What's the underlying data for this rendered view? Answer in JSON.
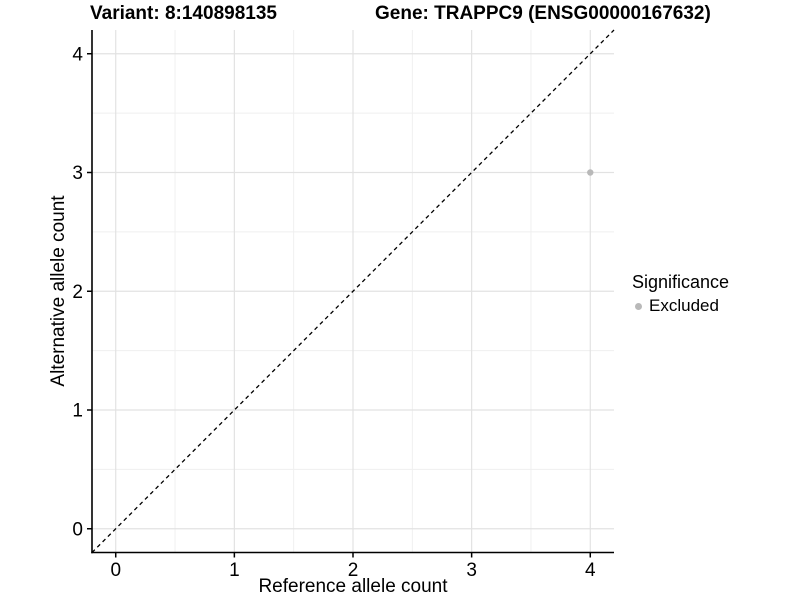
{
  "titles": {
    "variant": "Variant: 8:140898135",
    "gene": "Gene: TRAPPC9 (ENSG00000167632)"
  },
  "chart_data": {
    "type": "scatter",
    "xlabel": "Reference allele count",
    "ylabel": "Alternative allele count",
    "xlim": [
      -0.2,
      4.2
    ],
    "ylim": [
      -0.2,
      4.2
    ],
    "x_ticks": [
      0,
      1,
      2,
      3,
      4
    ],
    "y_ticks": [
      0,
      1,
      2,
      3,
      4
    ],
    "x_tick_labels": [
      "0",
      "1",
      "2",
      "3",
      "4"
    ],
    "y_tick_labels": [
      "0",
      "1",
      "2",
      "3",
      "4"
    ],
    "minor_grid_step": 0.5,
    "grid": true,
    "diagonal_line": {
      "style": "dashed",
      "from": [
        -0.2,
        -0.2
      ],
      "to": [
        4.2,
        4.2
      ],
      "color": "#000000"
    },
    "series": [
      {
        "name": "Excluded",
        "color": "#b9b9b9",
        "points": [
          {
            "x": 4,
            "y": 3
          }
        ]
      }
    ],
    "legend": {
      "title": "Significance",
      "position": "right",
      "items": [
        {
          "label": "Excluded",
          "color": "#b9b9b9"
        }
      ]
    },
    "colors": {
      "background": "#ffffff",
      "major_grid": "#e2e2e2",
      "minor_grid": "#efefef",
      "axis_line": "#000000",
      "tick_text": "#000000"
    }
  }
}
